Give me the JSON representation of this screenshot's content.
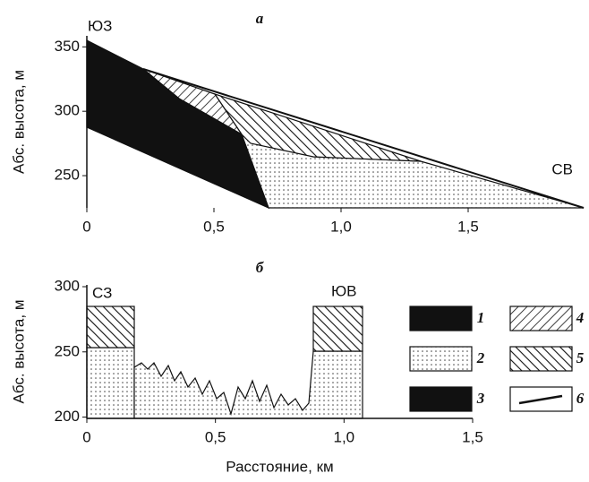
{
  "chart_data": [
    {
      "type": "cross-section",
      "title": "а",
      "y_label": "Абс. высота, м",
      "corner_left": "ЮЗ",
      "corner_right": "СВ",
      "xlim": [
        0,
        1.95
      ],
      "ylim": [
        225,
        353
      ],
      "xticks": [
        0,
        {
          "value": 0.5,
          "label": "0,5"
        },
        {
          "value": 1.0,
          "label": "1,0"
        },
        {
          "value": 1.5,
          "label": "1,5"
        }
      ],
      "yticks": [
        250,
        300,
        350
      ]
    },
    {
      "type": "cross-section",
      "title": "б",
      "y_label": "Абс. высота, м",
      "x_label": "Расстояние, км",
      "corner_left": "СЗ",
      "corner_right": "ЮВ",
      "xlim": [
        0,
        1.5
      ],
      "ylim": [
        199,
        300
      ],
      "xticks": [
        0,
        {
          "value": 0.5,
          "label": "0,5"
        },
        {
          "value": 1.0,
          "label": "1,0"
        },
        {
          "value": 1.5,
          "label": "1,5"
        }
      ],
      "yticks": [
        200,
        250,
        300
      ],
      "legend": [
        "1",
        "2",
        "3",
        "4",
        "5",
        "6"
      ]
    }
  ]
}
